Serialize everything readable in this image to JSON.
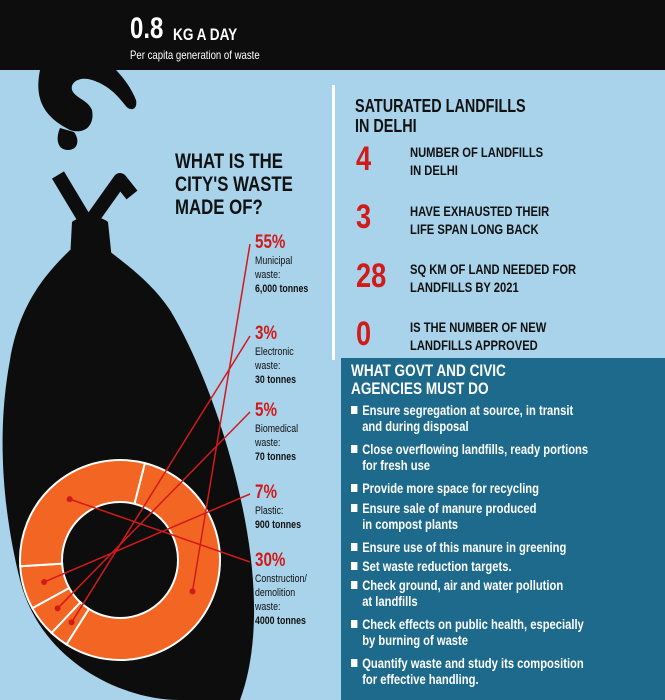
{
  "header": {
    "big_number": "0.8",
    "unit": "KG A DAY",
    "subtitle": "Per capita generation of waste"
  },
  "composition": {
    "title_lines": [
      "WHAT IS THE",
      "CITY'S WASTE",
      "MADE OF?"
    ],
    "items": [
      {
        "pct": "55%",
        "label_lines": [
          "Municipal",
          "waste:"
        ],
        "amount": "6,000 tonnes",
        "value": 55
      },
      {
        "pct": "3%",
        "label_lines": [
          "Electronic",
          "waste:"
        ],
        "amount": "30 tonnes",
        "value": 3
      },
      {
        "pct": "5%",
        "label_lines": [
          "Biomedical",
          "waste:"
        ],
        "amount": "70 tonnes",
        "value": 5
      },
      {
        "pct": "7%",
        "label_lines": [
          "Plastic:"
        ],
        "amount": "900 tonnes",
        "value": 7
      },
      {
        "pct": "30%",
        "label_lines": [
          "Construction/",
          "demolition",
          "waste:"
        ],
        "amount": "4000 tonnes",
        "value": 30
      }
    ]
  },
  "landfills": {
    "title_lines": [
      "SATURATED LANDFILLS",
      "IN DELHI"
    ],
    "stats": [
      {
        "number": "4",
        "text_lines": [
          "NUMBER OF LANDFILLS",
          "IN DELHI"
        ]
      },
      {
        "number": "3",
        "text_lines": [
          "HAVE EXHAUSTED THEIR",
          "LIFE SPAN LONG BACK"
        ]
      },
      {
        "number": "28",
        "text_lines": [
          "SQ KM OF LAND NEEDED FOR",
          "LANDFILLS BY 2021"
        ]
      },
      {
        "number": "0",
        "text_lines": [
          "IS THE NUMBER OF NEW",
          "LANDFILLS APPROVED"
        ]
      }
    ]
  },
  "actions": {
    "title_lines": [
      "WHAT GOVT AND CIVIC",
      "AGENCIES MUST DO"
    ],
    "items": [
      {
        "lines": [
          "Ensure segregation at source, in transit",
          "and during disposal"
        ]
      },
      {
        "lines": [
          "Close overflowing landfills, ready portions",
          "for fresh use"
        ]
      },
      {
        "lines": [
          "Provide more space for recycling"
        ]
      },
      {
        "lines": [
          "Ensure sale of manure produced",
          "in compost plants"
        ]
      },
      {
        "lines": [
          "Ensure use of this manure in greening"
        ]
      },
      {
        "lines": [
          "Set waste reduction targets."
        ]
      },
      {
        "lines": [
          "Check ground, air and water pollution",
          "at landfills"
        ]
      },
      {
        "lines": [
          "Check effects on public health, especially",
          "by burning of waste"
        ]
      },
      {
        "lines": [
          "Quantify waste and study its composition",
          "for effective handling."
        ]
      }
    ]
  },
  "colors": {
    "background": "#a8d3ea",
    "black": "#0d0d0d",
    "accent_red": "#d11a1a",
    "ring_orange": "#f26522",
    "panel_blue": "#1d6a8c"
  }
}
